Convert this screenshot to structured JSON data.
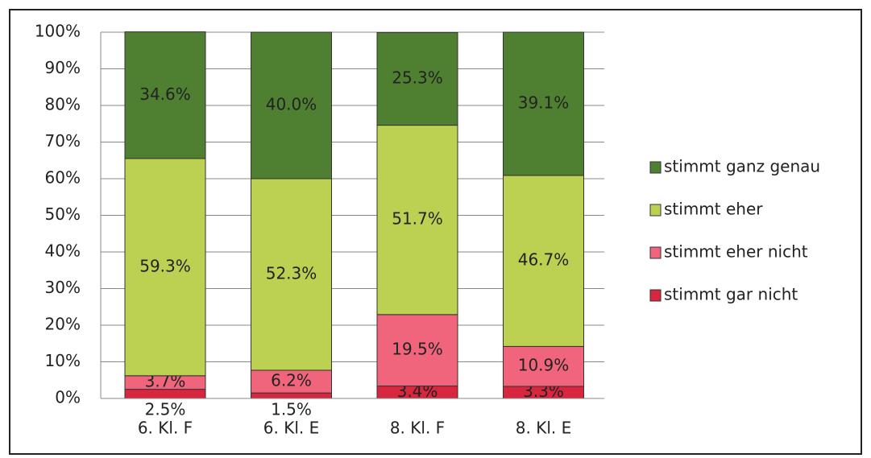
{
  "chart_data": {
    "type": "stacked_bar",
    "categories": [
      "6. Kl. F",
      "6. Kl. E",
      "8. Kl. F",
      "8. Kl. E"
    ],
    "series": [
      {
        "name": "stimmt gar nicht",
        "color": "#d9263f",
        "values": [
          2.5,
          1.5,
          3.4,
          3.3
        ],
        "value_labels": [
          "2.5%",
          "1.5%",
          "3.4%",
          "3.3%"
        ]
      },
      {
        "name": "stimmt eher nicht",
        "color": "#f0657b",
        "values": [
          3.7,
          6.2,
          19.5,
          10.9
        ],
        "value_labels": [
          "3.7%",
          "6.2%",
          "19.5%",
          "10.9%"
        ]
      },
      {
        "name": "stimmt eher",
        "color": "#bcd152",
        "values": [
          59.3,
          52.3,
          51.7,
          46.7
        ],
        "value_labels": [
          "59.3%",
          "52.3%",
          "51.7%",
          "46.7%"
        ]
      },
      {
        "name": "stimmt ganz genau",
        "color": "#4f7f30",
        "values": [
          34.6,
          40.0,
          25.3,
          39.1
        ],
        "value_labels": [
          "34.6%",
          "40.0%",
          "25.3%",
          "39.1%"
        ]
      }
    ],
    "ylim": [
      0,
      100
    ],
    "yticks": [
      {
        "value": 0,
        "label": "0%"
      },
      {
        "value": 10,
        "label": "10%"
      },
      {
        "value": 20,
        "label": "20%"
      },
      {
        "value": 30,
        "label": "30%"
      },
      {
        "value": 40,
        "label": "40%"
      },
      {
        "value": 50,
        "label": "50%"
      },
      {
        "value": 60,
        "label": "60%"
      },
      {
        "value": 70,
        "label": "70%"
      },
      {
        "value": 80,
        "label": "80%"
      },
      {
        "value": 90,
        "label": "90%"
      },
      {
        "value": 100,
        "label": "100%"
      }
    ],
    "grid": true,
    "legend": "right"
  }
}
